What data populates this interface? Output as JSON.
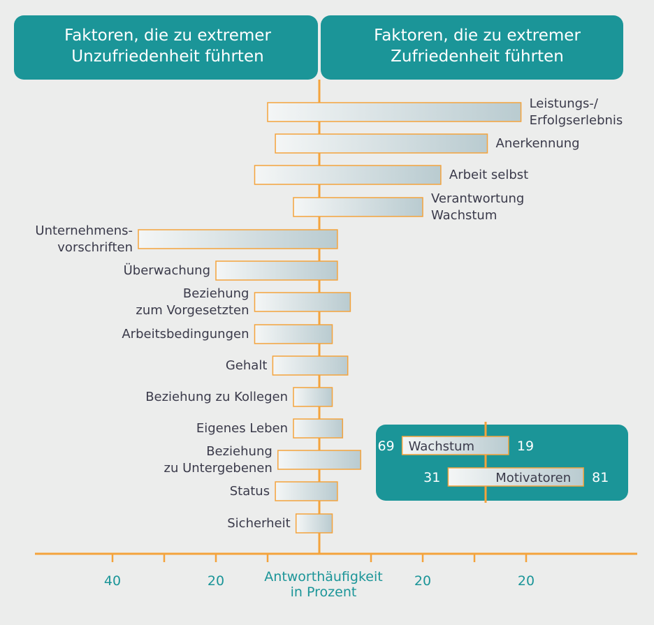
{
  "chart_data": {
    "type": "bar",
    "header_left": [
      "Faktoren, die zu extremer",
      "Unzufriedenheit führten"
    ],
    "header_right": [
      "Faktoren, die zu extremer",
      "Zufriedenheit führten"
    ],
    "axis_label": [
      "Antworthäufigkeit",
      "in Prozent"
    ],
    "axis_ticks_left": [
      40,
      20
    ],
    "axis_ticks_right": [
      20,
      20
    ],
    "factors": [
      {
        "label": [
          "Leistungs-/",
          "Erfolgserlebnis"
        ],
        "left": 10,
        "right": 39
      },
      {
        "label": [
          "Anerkennung"
        ],
        "left": 8.5,
        "right": 32.5
      },
      {
        "label": [
          "Arbeit selbst"
        ],
        "left": 12.5,
        "right": 23.5
      },
      {
        "label": [
          "Verantwortung",
          "Wachstum"
        ],
        "left": 5,
        "right": 20
      },
      {
        "label": [
          "Unternehmens-",
          "vorschriften"
        ],
        "left": 35,
        "right": 3.5
      },
      {
        "label": [
          "Überwachung"
        ],
        "left": 20,
        "right": 3.5
      },
      {
        "label": [
          "Beziehung",
          "zum Vorgesetzten"
        ],
        "left": 12.5,
        "right": 6
      },
      {
        "label": [
          "Arbeitsbedingungen"
        ],
        "left": 12.5,
        "right": 2.5
      },
      {
        "label": [
          "Gehalt"
        ],
        "left": 9,
        "right": 5.5
      },
      {
        "label": [
          "Beziehung zu Kollegen"
        ],
        "left": 5,
        "right": 2.5
      },
      {
        "label": [
          "Eigenes Leben"
        ],
        "left": 5,
        "right": 4.5
      },
      {
        "label": [
          "Beziehung",
          "zu Untergebenen"
        ],
        "left": 8,
        "right": 8
      },
      {
        "label": [
          "Status"
        ],
        "left": 8.5,
        "right": 3.5
      },
      {
        "label": [
          "Sicherheit"
        ],
        "left": 4.5,
        "right": 2.5
      }
    ],
    "inset": {
      "rows": [
        {
          "name": "Wachstum",
          "left": 69,
          "right": 19
        },
        {
          "name": "Motivatoren",
          "left": 31,
          "right": 81
        }
      ]
    },
    "colors": {
      "header": "#1b9598",
      "axis": "#f4a33c",
      "bar_border": "#f4a33c",
      "bar_fill_light": "#f4f6f6",
      "bar_fill_dark": "#b9cbd0",
      "tick_label": "#1b9598",
      "background": "#ecedec"
    }
  }
}
